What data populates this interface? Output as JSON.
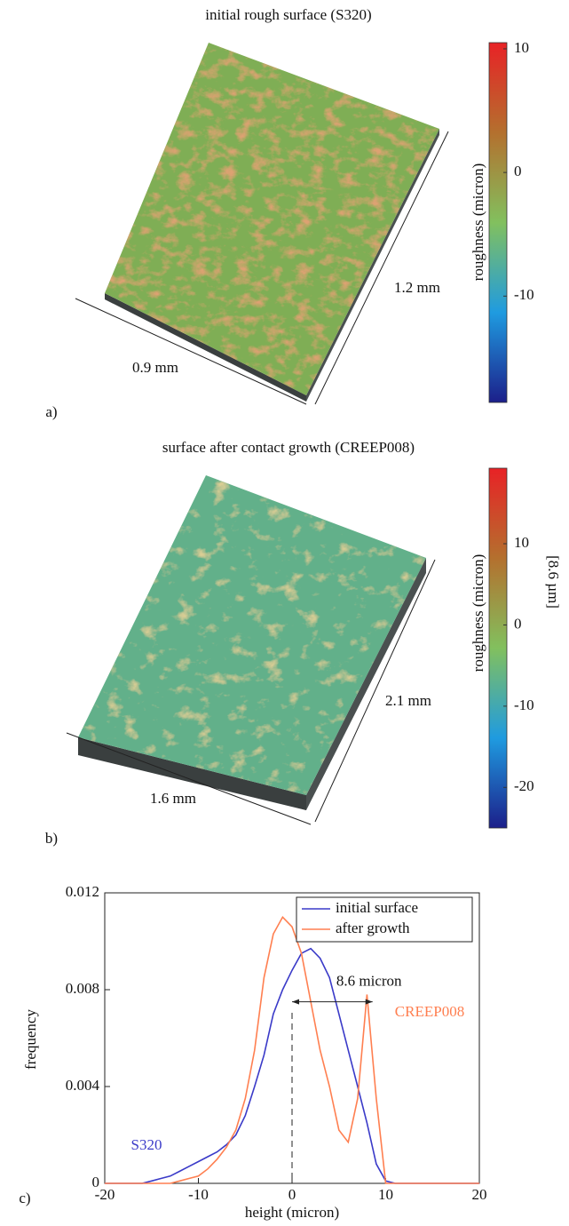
{
  "chart_data": [
    {
      "type": "colorbar",
      "panel": "a)",
      "title": "initial rough surface (S320)",
      "annotations": [
        "0.9 mm",
        "1.2 mm"
      ],
      "colorbar_label": "roughness (micron)",
      "colors": [
        "#1c1f8a",
        "#1f9be0",
        "#82c05e",
        "#b4702e",
        "#e82226"
      ],
      "ylim": [
        -18.6,
        10.5
      ],
      "yticks": [
        -10,
        0,
        10
      ]
    },
    {
      "type": "colorbar",
      "panel": "b)",
      "title": "surface after contact growth (CREEP008)",
      "annotations": [
        "1.6 mm",
        "2.1 mm"
      ],
      "colorbar_label": "roughness (micron)",
      "side_label": "[8.6 µm]",
      "colors": [
        "#1c1f8a",
        "#1f9be0",
        "#82c05e",
        "#b4702e",
        "#e82226"
      ],
      "ylim": [
        -25,
        19.3
      ],
      "yticks": [
        -20,
        -10,
        0,
        10
      ]
    },
    {
      "type": "line",
      "panel": "c)",
      "xlabel": "height (micron)",
      "ylabel": "frequency",
      "x": [
        -20,
        -19,
        -18,
        -17,
        -16,
        -15,
        -14,
        -13,
        -12,
        -11,
        -10,
        -9,
        -8,
        -7,
        -6,
        -5,
        -4,
        -3,
        -2,
        -1,
        0,
        1,
        2,
        3,
        4,
        5,
        6,
        7,
        8,
        9,
        10,
        11,
        12,
        13,
        14,
        15,
        16,
        17,
        18,
        19,
        20
      ],
      "series": [
        {
          "name": "initial surface",
          "color": "#3a3ac8",
          "values": [
            0,
            0,
            0,
            0,
            0,
            0.0001,
            0.0002,
            0.0003,
            0.0005,
            0.0007,
            0.0009,
            0.0011,
            0.0013,
            0.0016,
            0.002,
            0.0028,
            0.004,
            0.0053,
            0.007,
            0.008,
            0.0088,
            0.0095,
            0.0097,
            0.0093,
            0.0085,
            0.007,
            0.0055,
            0.004,
            0.0025,
            0.0008,
            0.0001,
            0,
            0,
            0,
            0,
            0,
            0,
            0,
            0,
            0,
            0
          ]
        },
        {
          "name": "after growth",
          "color": "#ff7f50",
          "values": [
            0,
            0,
            0,
            0,
            0,
            0,
            0,
            0,
            0.0001,
            0.0002,
            0.0003,
            0.0006,
            0.001,
            0.0015,
            0.0022,
            0.0035,
            0.0055,
            0.0085,
            0.0103,
            0.011,
            0.0106,
            0.0095,
            0.0075,
            0.0055,
            0.004,
            0.0022,
            0.0017,
            0.0035,
            0.0078,
            0.0035,
            0,
            0,
            0,
            0,
            0,
            0,
            0,
            0,
            0,
            0,
            0
          ]
        }
      ],
      "annotations": [
        "S320",
        "CREEP008"
      ],
      "reference_x": 0,
      "shift": {
        "label": "8.6 micron",
        "from": 0,
        "to": 8.6,
        "y": 0.0075
      },
      "xlim": [
        -20,
        20
      ],
      "xticks": [
        -20,
        -10,
        0,
        10,
        20
      ],
      "ylim": [
        0,
        0.012
      ],
      "yticks": [
        0,
        0.004,
        0.008,
        0.012
      ],
      "legend": "top-right"
    }
  ]
}
